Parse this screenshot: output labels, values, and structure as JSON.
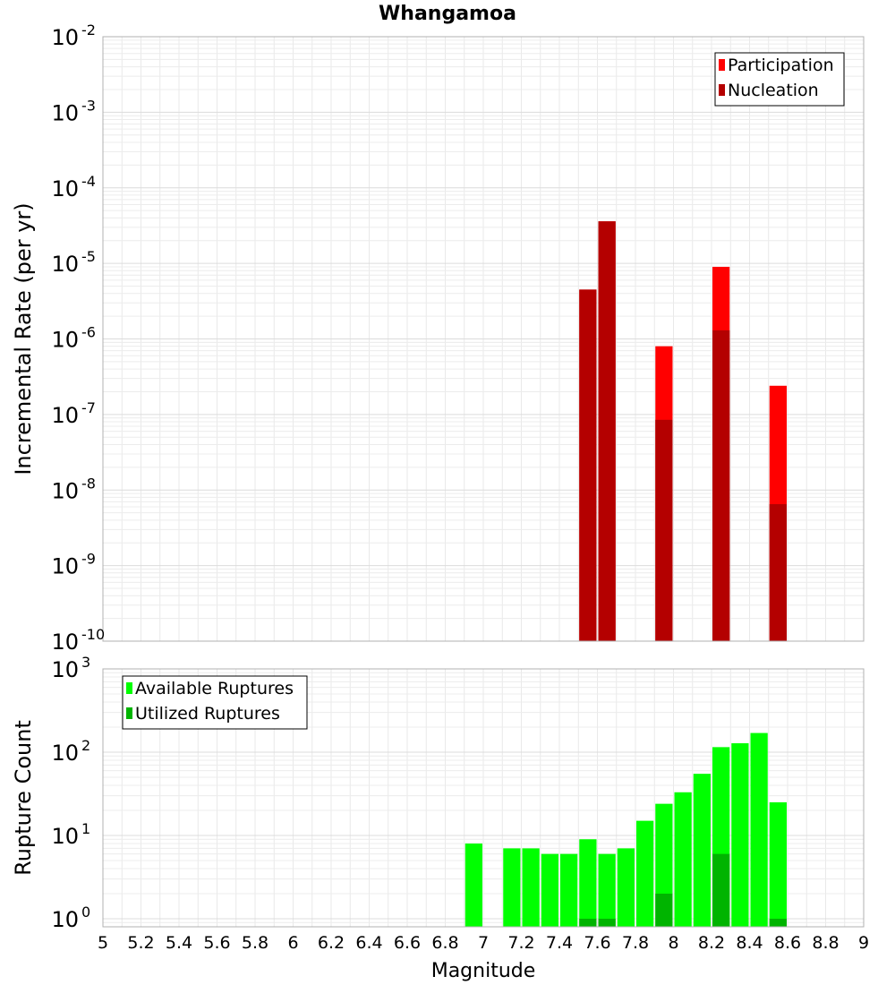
{
  "title": "Whangamoa",
  "chart_data": [
    {
      "type": "bar",
      "ylabel": "Incremental Rate (per yr)",
      "yscale": "log",
      "ylim": [
        1e-10,
        0.01
      ],
      "xlim": [
        5,
        9
      ],
      "bar_width": 0.1,
      "grid": true,
      "legend_position": "top-right",
      "y_ticks": [
        {
          "base": "10",
          "exp": "-10",
          "value": 1e-10
        },
        {
          "base": "10",
          "exp": "-9",
          "value": 1e-09
        },
        {
          "base": "10",
          "exp": "-8",
          "value": 1e-08
        },
        {
          "base": "10",
          "exp": "-7",
          "value": 1e-07
        },
        {
          "base": "10",
          "exp": "-6",
          "value": 1e-06
        },
        {
          "base": "10",
          "exp": "-5",
          "value": 1e-05
        },
        {
          "base": "10",
          "exp": "-4",
          "value": 0.0001
        },
        {
          "base": "10",
          "exp": "-3",
          "value": 0.001
        },
        {
          "base": "10",
          "exp": "-2",
          "value": 0.01
        }
      ],
      "series": [
        {
          "name": "Participation",
          "color": "#ff0000",
          "x": [
            7.55,
            7.65,
            7.95,
            8.25,
            8.55
          ],
          "values": [
            4.5e-06,
            3.6e-05,
            8e-07,
            9e-06,
            2.4e-07
          ]
        },
        {
          "name": "Nucleation",
          "color": "#b40000",
          "x": [
            7.55,
            7.65,
            7.95,
            8.25,
            8.55
          ],
          "values": [
            4.5e-06,
            3.6e-05,
            8.5e-08,
            1.3e-06,
            6.5e-09
          ]
        }
      ]
    },
    {
      "type": "bar",
      "ylabel": "Rupture Count",
      "xlabel": "Magnitude",
      "yscale": "log",
      "ylim": [
        0.8,
        1000
      ],
      "xlim": [
        5,
        9
      ],
      "bar_width": 0.1,
      "grid": true,
      "legend_position": "top-left",
      "y_ticks": [
        {
          "base": "10",
          "exp": "0",
          "value": 1
        },
        {
          "base": "10",
          "exp": "1",
          "value": 10
        },
        {
          "base": "10",
          "exp": "2",
          "value": 100
        },
        {
          "base": "10",
          "exp": "3",
          "value": 1000
        }
      ],
      "x_ticks": [
        "5",
        "5.2",
        "5.4",
        "5.6",
        "5.8",
        "6",
        "6.2",
        "6.4",
        "6.6",
        "6.8",
        "7",
        "7.2",
        "7.4",
        "7.6",
        "7.8",
        "8",
        "8.2",
        "8.4",
        "8.6",
        "8.8",
        "9"
      ],
      "series": [
        {
          "name": "Available Ruptures",
          "color": "#00ff00",
          "x": [
            6.95,
            7.15,
            7.25,
            7.35,
            7.45,
            7.55,
            7.65,
            7.75,
            7.85,
            7.95,
            8.05,
            8.15,
            8.25,
            8.35,
            8.45,
            8.55
          ],
          "values": [
            8,
            7,
            7,
            6,
            6,
            9,
            6,
            7,
            15,
            24,
            33,
            55,
            115,
            128,
            170,
            25
          ]
        },
        {
          "name": "Utilized Ruptures",
          "color": "#00b400",
          "x": [
            7.55,
            7.65,
            7.95,
            8.25,
            8.55
          ],
          "values": [
            1,
            1,
            2,
            6,
            1
          ]
        }
      ]
    }
  ]
}
